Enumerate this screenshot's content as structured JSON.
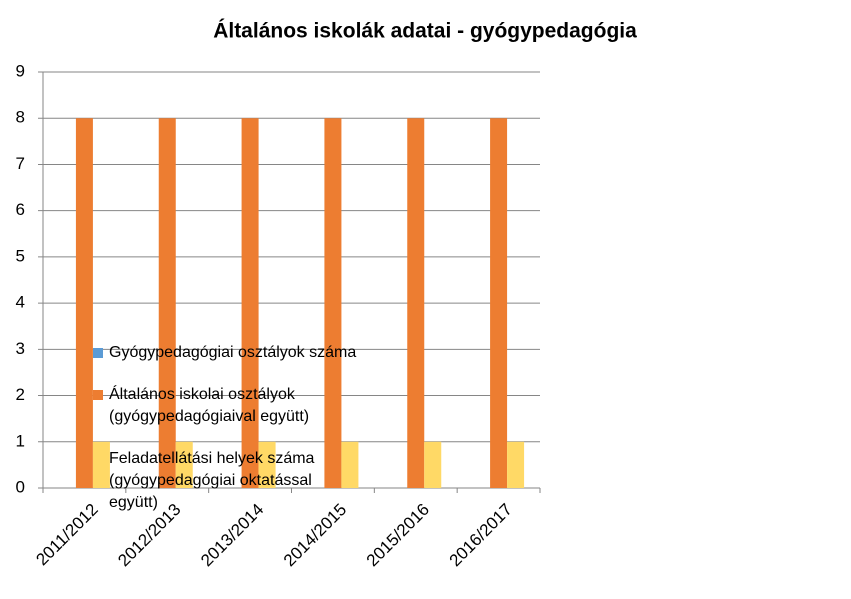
{
  "chart_data": {
    "type": "bar",
    "title": "Általános iskolák adatai - gyógypedagógia",
    "categories": [
      "2011/2012",
      "2012/2013",
      "2013/2014",
      "2014/2015",
      "2015/2016",
      "2016/2017"
    ],
    "series": [
      {
        "name": "Gyógypedagógiai osztályok száma",
        "color": "#5b9bd5",
        "values": [
          0,
          0,
          0,
          0,
          0,
          0
        ]
      },
      {
        "name": "Általános iskolai osztályok (gyógypedagógiaival együtt)",
        "color": "#ed7d31",
        "values": [
          8,
          8,
          8,
          8,
          8,
          8
        ]
      },
      {
        "name": "Feladatellátási helyek száma (gyógypedagógiai oktatással együtt)",
        "color": "#ffd966",
        "values": [
          1,
          1,
          1,
          1,
          1,
          1
        ]
      }
    ],
    "ylim": [
      0,
      9
    ],
    "yticks": [
      0,
      1,
      2,
      3,
      4,
      5,
      6,
      7,
      8,
      9
    ],
    "grid": true
  }
}
